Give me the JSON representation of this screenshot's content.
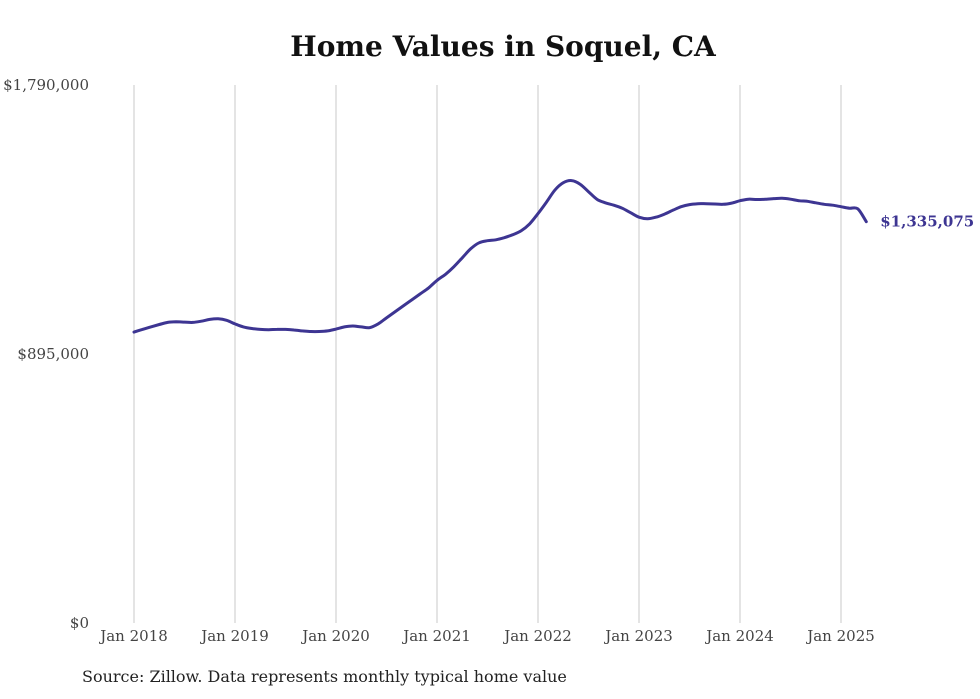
{
  "title": "Home Values in Soquel, CA",
  "source": "Source: Zillow. Data represents monthly typical home value",
  "colors": {
    "line": "#3d3592",
    "grid": "#c8c8c8",
    "text": "#444444"
  },
  "chart_data": {
    "type": "line",
    "title": "Home Values in Soquel, CA",
    "xlabel": "",
    "ylabel": "",
    "ylim": [
      0,
      1790000
    ],
    "yticks": [
      0,
      895000,
      1790000
    ],
    "ytick_labels": [
      "$0",
      "$895,000",
      "$1,790,000"
    ],
    "xticks": [
      "Jan 2018",
      "Jan 2019",
      "Jan 2020",
      "Jan 2021",
      "Jan 2022",
      "Jan 2023",
      "Jan 2024",
      "Jan 2025"
    ],
    "grid": "vertical",
    "end_label": "$1,335,075",
    "series": [
      {
        "color": "#3d3592",
        "x": [
          "2018-01",
          "2018-02",
          "2018-03",
          "2018-04",
          "2018-05",
          "2018-06",
          "2018-07",
          "2018-08",
          "2018-09",
          "2018-10",
          "2018-11",
          "2018-12",
          "2019-01",
          "2019-02",
          "2019-03",
          "2019-04",
          "2019-05",
          "2019-06",
          "2019-07",
          "2019-08",
          "2019-09",
          "2019-10",
          "2019-11",
          "2019-12",
          "2020-01",
          "2020-02",
          "2020-03",
          "2020-04",
          "2020-05",
          "2020-06",
          "2020-07",
          "2020-08",
          "2020-09",
          "2020-10",
          "2020-11",
          "2020-12",
          "2021-01",
          "2021-02",
          "2021-03",
          "2021-04",
          "2021-05",
          "2021-06",
          "2021-07",
          "2021-08",
          "2021-09",
          "2021-10",
          "2021-11",
          "2021-12",
          "2022-01",
          "2022-02",
          "2022-03",
          "2022-04",
          "2022-05",
          "2022-06",
          "2022-07",
          "2022-08",
          "2022-09",
          "2022-10",
          "2022-11",
          "2022-12",
          "2023-01",
          "2023-02",
          "2023-03",
          "2023-04",
          "2023-05",
          "2023-06",
          "2023-07",
          "2023-08",
          "2023-09",
          "2023-10",
          "2023-11",
          "2023-12",
          "2024-01",
          "2024-02",
          "2024-03",
          "2024-04",
          "2024-05",
          "2024-06",
          "2024-07",
          "2024-08",
          "2024-09",
          "2024-10",
          "2024-11",
          "2024-12",
          "2025-01",
          "2025-02",
          "2025-03",
          "2025-04"
        ],
        "values": [
          968000,
          977000,
          985000,
          993000,
          1000000,
          1002000,
          1001000,
          1000000,
          1004000,
          1010000,
          1012000,
          1007000,
          995000,
          985000,
          980000,
          977000,
          976000,
          977000,
          977000,
          975000,
          972000,
          970000,
          970000,
          972000,
          978000,
          985000,
          988000,
          985000,
          983000,
          995000,
          1015000,
          1035000,
          1055000,
          1075000,
          1095000,
          1115000,
          1140000,
          1160000,
          1185000,
          1215000,
          1245000,
          1265000,
          1272000,
          1275000,
          1282000,
          1292000,
          1305000,
          1328000,
          1362000,
          1400000,
          1440000,
          1465000,
          1472000,
          1460000,
          1435000,
          1410000,
          1398000,
          1390000,
          1380000,
          1365000,
          1350000,
          1345000,
          1350000,
          1360000,
          1373000,
          1385000,
          1392000,
          1395000,
          1395000,
          1394000,
          1393000,
          1397000,
          1405000,
          1410000,
          1409000,
          1410000,
          1412000,
          1413000,
          1410000,
          1405000,
          1403000,
          1398000,
          1393000,
          1390000,
          1385000,
          1380000,
          1378000,
          1335075
        ]
      }
    ]
  }
}
